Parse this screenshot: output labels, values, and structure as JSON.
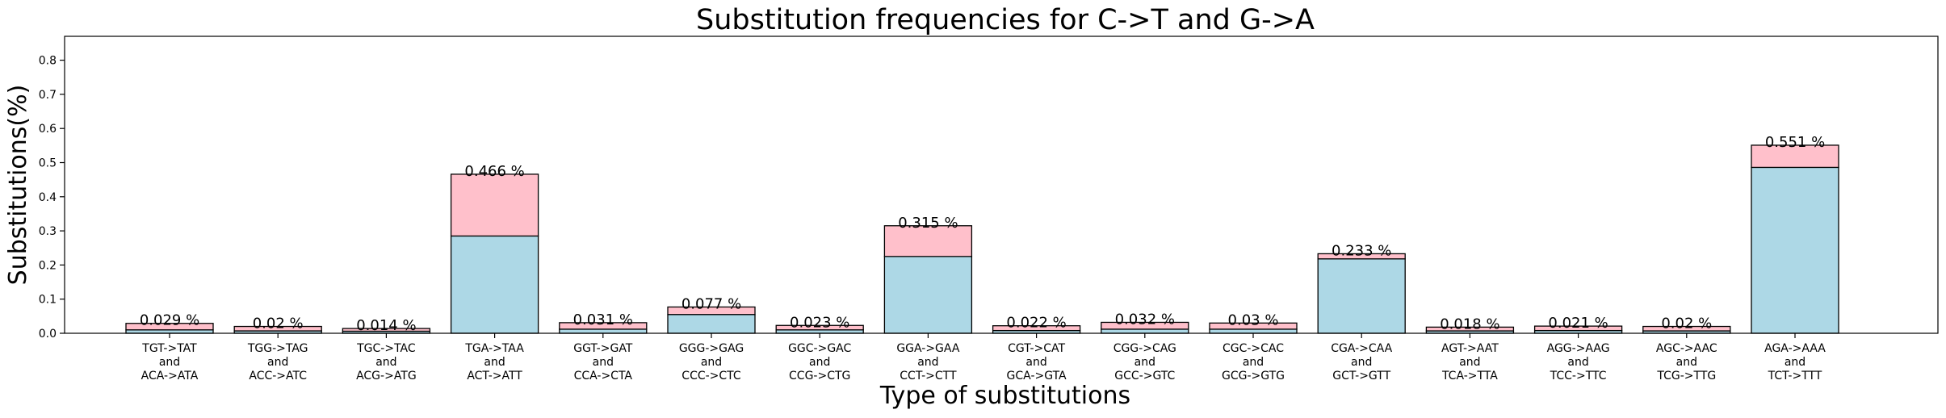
{
  "chart_data": {
    "type": "bar",
    "title": "Substitution frequencies for C->T and G->A",
    "xlabel": "Type of substitutions",
    "ylabel": "Substitutions(%)",
    "ylim": [
      0,
      0.87
    ],
    "yticks": [
      0.0,
      0.1,
      0.2,
      0.3,
      0.4,
      0.5,
      0.6,
      0.7,
      0.8
    ],
    "grid": false,
    "stacked": true,
    "categories": [
      [
        "TGT->TAT",
        "and",
        "ACA->ATA"
      ],
      [
        "TGG->TAG",
        "and",
        "ACC->ATC"
      ],
      [
        "TGC->TAC",
        "and",
        "ACG->ATG"
      ],
      [
        "TGA->TAA",
        "and",
        "ACT->ATT"
      ],
      [
        "GGT->GAT",
        "and",
        "CCA->CTA"
      ],
      [
        "GGG->GAG",
        "and",
        "CCC->CTC"
      ],
      [
        "GGC->GAC",
        "and",
        "CCG->CTG"
      ],
      [
        "GGA->GAA",
        "and",
        "CCT->CTT"
      ],
      [
        "CGT->CAT",
        "and",
        "GCA->GTA"
      ],
      [
        "CGG->CAG",
        "and",
        "GCC->GTC"
      ],
      [
        "CGC->CAC",
        "and",
        "GCG->GTG"
      ],
      [
        "CGA->CAA",
        "and",
        "GCT->GTT"
      ],
      [
        "AGT->AAT",
        "and",
        "TCA->TTA"
      ],
      [
        "AGG->AAG",
        "and",
        "TCC->TTC"
      ],
      [
        "AGC->AAC",
        "and",
        "TCG->TTG"
      ],
      [
        "AGA->AAA",
        "and",
        "TCT->TTT"
      ]
    ],
    "series": [
      {
        "color": "#add8e6",
        "values": [
          0.01,
          0.007,
          0.006,
          0.285,
          0.012,
          0.055,
          0.01,
          0.225,
          0.008,
          0.012,
          0.012,
          0.218,
          0.007,
          0.008,
          0.007,
          0.486
        ]
      },
      {
        "color": "#ffc0cb",
        "values": [
          0.019,
          0.013,
          0.008,
          0.181,
          0.019,
          0.022,
          0.013,
          0.09,
          0.014,
          0.02,
          0.018,
          0.015,
          0.011,
          0.013,
          0.013,
          0.065
        ]
      }
    ],
    "totals": [
      0.029,
      0.02,
      0.014,
      0.466,
      0.031,
      0.077,
      0.023,
      0.315,
      0.022,
      0.032,
      0.03,
      0.233,
      0.018,
      0.021,
      0.02,
      0.551
    ],
    "data_labels": [
      "0.029 %",
      "0.02 %",
      "0.014 %",
      "0.466 %",
      "0.031 %",
      "0.077 %",
      "0.023 %",
      "0.315 %",
      "0.022 %",
      "0.032 %",
      "0.03 %",
      "0.233 %",
      "0.018 %",
      "0.021 %",
      "0.02 %",
      "0.551 %"
    ]
  }
}
